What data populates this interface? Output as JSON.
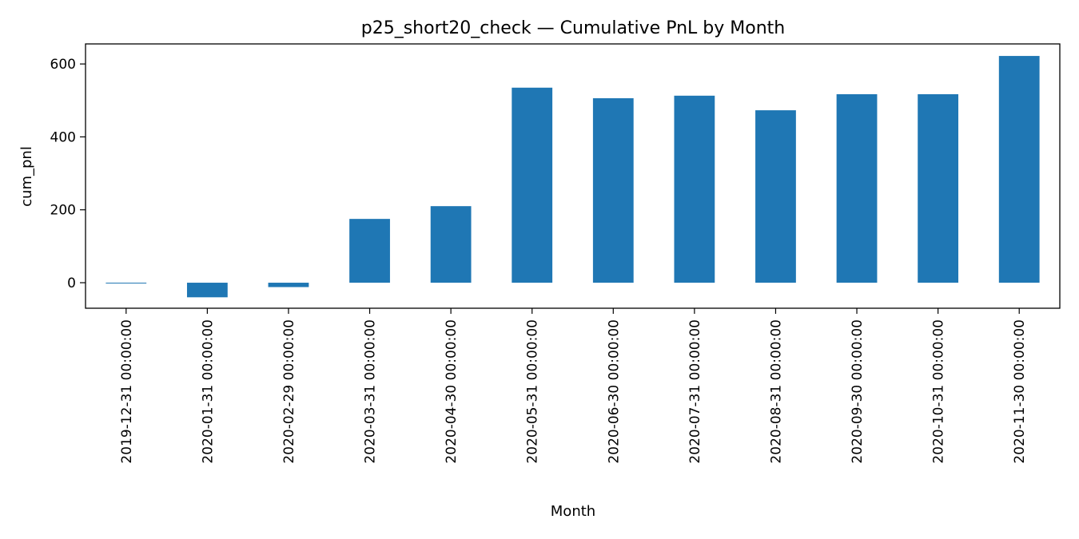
{
  "chart_data": {
    "type": "bar",
    "title": "p25_short20_check — Cumulative PnL by Month",
    "xlabel": "Month",
    "ylabel": "cum_pnl",
    "categories": [
      "2019-12-31 00:00:00",
      "2020-01-31 00:00:00",
      "2020-02-29 00:00:00",
      "2020-03-31 00:00:00",
      "2020-04-30 00:00:00",
      "2020-05-31 00:00:00",
      "2020-06-30 00:00:00",
      "2020-07-31 00:00:00",
      "2020-08-31 00:00:00",
      "2020-09-30 00:00:00",
      "2020-10-31 00:00:00",
      "2020-11-30 00:00:00"
    ],
    "values": [
      -2,
      -40,
      -12,
      175,
      210,
      535,
      506,
      513,
      473,
      517,
      517,
      622
    ],
    "ylim": [
      -70,
      655
    ],
    "yticks": [
      0,
      200,
      400,
      600
    ],
    "grid": false,
    "bar_color": "#1f77b4"
  }
}
